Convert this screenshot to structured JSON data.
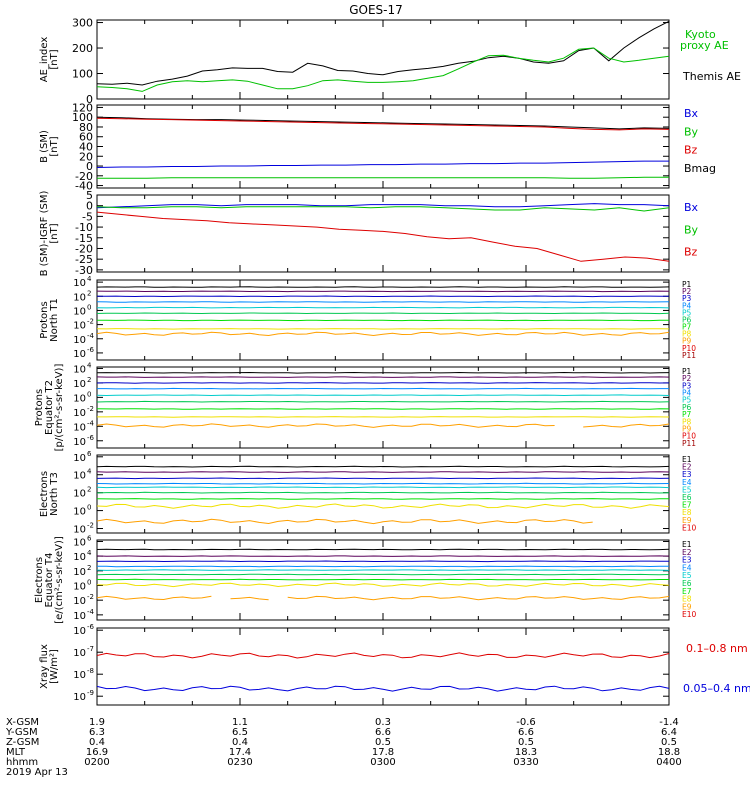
{
  "title": "GOES-17",
  "colors": {
    "black": "#000000",
    "red": "#dd0000",
    "green": "#00c000",
    "blue": "#0000dd",
    "spec": [
      "#000000",
      "#5a005a",
      "#0000c8",
      "#0088ff",
      "#00cccc",
      "#00c850",
      "#00e000",
      "#f0e000",
      "#ffa000",
      "#e00000",
      "#a00000"
    ]
  },
  "time_axis": {
    "start": "02:00",
    "end": "04:00",
    "ticks": [
      "0200",
      "0230",
      "0300",
      "0330",
      "0400"
    ]
  },
  "panels": [
    {
      "id": "ae",
      "ylabel": [
        "AE_index",
        "[nT]"
      ],
      "yticks": [
        "300",
        "200",
        "100",
        "0"
      ],
      "ylim": [
        0,
        310
      ],
      "legend": [
        {
          "text": "Kyoto",
          "color": "#00c000"
        },
        {
          "text": "proxy AE",
          "color": "#00c000"
        },
        {
          "text": "Themis AE",
          "color": "#000000"
        }
      ],
      "series": [
        {
          "name": "Themis AE",
          "color": "#000000",
          "values": [
            60,
            58,
            62,
            55,
            70,
            78,
            90,
            110,
            115,
            122,
            120,
            120,
            108,
            105,
            140,
            130,
            112,
            110,
            100,
            95,
            108,
            115,
            120,
            128,
            140,
            148,
            162,
            168,
            160,
            145,
            140,
            150,
            190,
            200,
            150,
            200,
            240,
            275,
            305
          ]
        },
        {
          "name": "Kyoto proxy AE",
          "color": "#00c000",
          "values": [
            48,
            45,
            40,
            30,
            55,
            68,
            72,
            68,
            72,
            75,
            70,
            55,
            40,
            40,
            52,
            72,
            75,
            70,
            65,
            65,
            68,
            72,
            82,
            92,
            118,
            145,
            170,
            172,
            160,
            152,
            145,
            160,
            195,
            200,
            160,
            145,
            152,
            160,
            168
          ]
        }
      ]
    },
    {
      "id": "bsm",
      "ylabel": [
        "B (SM)",
        "[nT]"
      ],
      "yticks": [
        "120",
        "100",
        "80",
        "60",
        "40",
        "20",
        "0",
        "-20",
        "-40"
      ],
      "ylim": [
        -45,
        125
      ],
      "legend": [
        {
          "text": "Bx",
          "color": "#0000dd"
        },
        {
          "text": "By",
          "color": "#00c000"
        },
        {
          "text": "Bz",
          "color": "#dd0000"
        },
        {
          "text": "Bmag",
          "color": "#000000"
        }
      ],
      "series": [
        {
          "name": "Bmag",
          "color": "#000000",
          "values": [
            100,
            99,
            97,
            96,
            95,
            95,
            94,
            93,
            92,
            91,
            90,
            89,
            88,
            87,
            86,
            85,
            84,
            83,
            82,
            80,
            78,
            76,
            78,
            77
          ]
        },
        {
          "name": "Bz",
          "color": "#dd0000",
          "values": [
            98,
            97,
            96,
            95,
            94,
            93,
            92,
            91,
            90,
            89,
            88,
            87,
            86,
            85,
            84,
            83,
            82,
            81,
            80,
            77,
            75,
            74,
            76,
            75
          ]
        },
        {
          "name": "Bx",
          "color": "#0000dd",
          "values": [
            -3,
            -2,
            -2,
            -1,
            -1,
            0,
            0,
            1,
            1,
            2,
            2,
            3,
            3,
            4,
            4,
            5,
            5,
            6,
            6,
            7,
            8,
            9,
            10,
            10
          ]
        },
        {
          "name": "By",
          "color": "#00c000",
          "values": [
            -25,
            -25,
            -25,
            -24,
            -24,
            -24,
            -24,
            -24,
            -24,
            -24,
            -24,
            -24,
            -24,
            -24,
            -24,
            -24,
            -24,
            -24,
            -24,
            -25,
            -25,
            -24,
            -23,
            -23
          ]
        }
      ]
    },
    {
      "id": "bigrf",
      "ylabel": [
        "B (SM)-IGRF (SM)",
        "[nT]"
      ],
      "yticks": [
        "5",
        "0",
        "-5",
        "-10",
        "-15",
        "-20",
        "-25",
        "-30"
      ],
      "ylim": [
        -31,
        5
      ],
      "legend": [
        {
          "text": "Bx",
          "color": "#0000dd"
        },
        {
          "text": "By",
          "color": "#00c000"
        },
        {
          "text": "Bz",
          "color": "#dd0000"
        }
      ],
      "series": [
        {
          "name": "Bx",
          "color": "#0000dd",
          "values": [
            -1,
            -0.5,
            0,
            0.5,
            0.5,
            0,
            0.5,
            0.5,
            0.5,
            0,
            0,
            0.5,
            0.5,
            0.5,
            0,
            0,
            -0.5,
            -0.5,
            0,
            0.5,
            1,
            0.5,
            0.5,
            0
          ]
        },
        {
          "name": "By",
          "color": "#00c000",
          "values": [
            -0.5,
            -1,
            -1,
            -0.5,
            -0.5,
            -1,
            -0.5,
            -0.5,
            -0.5,
            -0.5,
            -0.5,
            -1,
            -0.5,
            -0.5,
            -1,
            -1.5,
            -2,
            -2,
            -1,
            -1.5,
            -2,
            -1,
            -2.5,
            -1
          ]
        },
        {
          "name": "Bz",
          "color": "#dd0000",
          "values": [
            -3,
            -4,
            -5,
            -6,
            -6.5,
            -7,
            -8,
            -8.5,
            -9,
            -9.5,
            -10,
            -11,
            -11.5,
            -12,
            -13,
            -14.5,
            -15.5,
            -15,
            -17,
            -19,
            -20,
            -23,
            -26,
            -25,
            -24,
            -24.5,
            -26
          ]
        }
      ]
    },
    {
      "id": "pn",
      "ylabel": [
        "Protons",
        "North T1"
      ],
      "log": true,
      "ylim_exp": [
        -7,
        4.3
      ],
      "yticks": [
        {
          "base": "10",
          "exp": "4",
          "e": 4
        },
        {
          "base": "10",
          "exp": "2",
          "e": 2
        },
        {
          "base": "10",
          "exp": "0",
          "e": 0
        },
        {
          "base": "10",
          "exp": "-2",
          "e": -2
        },
        {
          "base": "10",
          "exp": "-4",
          "e": -4
        },
        {
          "base": "10",
          "exp": "-6",
          "e": -6
        }
      ],
      "legend": [
        "P1",
        "P2",
        "P3",
        "P4",
        "P5",
        "P6",
        "P7",
        "P8",
        "P9",
        "P10",
        "P11"
      ],
      "channels_log": [
        3.3,
        2.7,
        2.0,
        1.2,
        0.4,
        -0.4,
        -1.4,
        -2.6,
        -3.3,
        null,
        null
      ]
    },
    {
      "id": "pe",
      "ylabel": [
        "Protons",
        "Equator T2",
        "[p/(cm²-s-sr-keV)]"
      ],
      "log": true,
      "ylim_exp": [
        -7,
        4.2
      ],
      "yticks": [
        {
          "base": "10",
          "exp": "4",
          "e": 4
        },
        {
          "base": "10",
          "exp": "2",
          "e": 2
        },
        {
          "base": "10",
          "exp": "0",
          "e": 0
        },
        {
          "base": "10",
          "exp": "-2",
          "e": -2
        },
        {
          "base": "10",
          "exp": "-4",
          "e": -4
        },
        {
          "base": "10",
          "exp": "-6",
          "e": -6
        }
      ],
      "legend": [
        "P1",
        "P2",
        "P3",
        "P4",
        "P5",
        "P6",
        "P7",
        "P8",
        "P9",
        "P10",
        "P11"
      ],
      "channels_log": [
        3.4,
        2.8,
        2.0,
        1.2,
        0.3,
        -0.6,
        -1.6,
        -2.7,
        -3.9,
        null,
        null
      ]
    },
    {
      "id": "en",
      "ylabel": [
        "Electrons",
        "North T3"
      ],
      "log": true,
      "ylim_exp": [
        -2.5,
        6.2
      ],
      "yticks": [
        {
          "base": "10",
          "exp": "6",
          "e": 6
        },
        {
          "base": "10",
          "exp": "4",
          "e": 4
        },
        {
          "base": "10",
          "exp": "2",
          "e": 2
        },
        {
          "base": "10",
          "exp": "0",
          "e": 0
        },
        {
          "base": "10",
          "exp": "-2",
          "e": -2
        }
      ],
      "legend": [
        "E1",
        "E2",
        "E3",
        "E4",
        "E5",
        "E6",
        "E7",
        "E8",
        "E9",
        "E10"
      ],
      "channels_log": [
        4.9,
        4.3,
        3.6,
        3.0,
        2.6,
        2.0,
        1.3,
        0.5,
        -1.2,
        null
      ]
    },
    {
      "id": "ee",
      "ylabel": [
        "Electrons",
        "Equator T4",
        "[e/(cm²-s-sr-keV)]"
      ],
      "log": true,
      "ylim_exp": [
        -4.7,
        6.2
      ],
      "yticks": [
        {
          "base": "10",
          "exp": "6",
          "e": 6
        },
        {
          "base": "10",
          "exp": "4",
          "e": 4
        },
        {
          "base": "10",
          "exp": "2",
          "e": 2
        },
        {
          "base": "10",
          "exp": "0",
          "e": 0
        },
        {
          "base": "10",
          "exp": "-2",
          "e": -2
        },
        {
          "base": "10",
          "exp": "-4",
          "e": -4
        }
      ],
      "legend": [
        "E1",
        "E2",
        "E3",
        "E4",
        "E5",
        "E6",
        "E7",
        "E8",
        "E9",
        "E10"
      ],
      "channels_log": [
        4.9,
        4.0,
        3.3,
        2.6,
        2.1,
        1.5,
        0.8,
        0.1,
        -1.7,
        null
      ]
    },
    {
      "id": "xray",
      "ylabel": [
        "Xray flux",
        "[W/m²]"
      ],
      "log": true,
      "ylim_exp": [
        -9.4,
        -5.9
      ],
      "yticks": [
        {
          "base": "10",
          "exp": "-6",
          "e": -6
        },
        {
          "base": "10",
          "exp": "-7",
          "e": -7
        },
        {
          "base": "10",
          "exp": "-8",
          "e": -8
        },
        {
          "base": "10",
          "exp": "-9",
          "e": -9
        }
      ],
      "legend": [
        {
          "text": "0.1–0.8 nm",
          "color": "#dd0000"
        },
        {
          "text": "0.05–0.4 nm",
          "color": "#0000dd"
        }
      ],
      "channels_log": [
        -7.15,
        -8.65
      ]
    }
  ],
  "ephemeris": {
    "labels": [
      "X-GSM",
      "Y-GSM",
      "Z-GSM",
      "MLT",
      "hhmm"
    ],
    "date": "2019 Apr 13",
    "columns": [
      [
        "1.9",
        "6.3",
        "0.4",
        "16.9",
        "0200"
      ],
      [
        "1.1",
        "6.5",
        "0.4",
        "17.4",
        "0230"
      ],
      [
        "0.3",
        "6.6",
        "0.5",
        "17.8",
        "0300"
      ],
      [
        "-0.6",
        "6.6",
        "0.5",
        "18.3",
        "0330"
      ],
      [
        "-1.4",
        "6.4",
        "0.5",
        "18.8",
        "0400"
      ]
    ]
  }
}
